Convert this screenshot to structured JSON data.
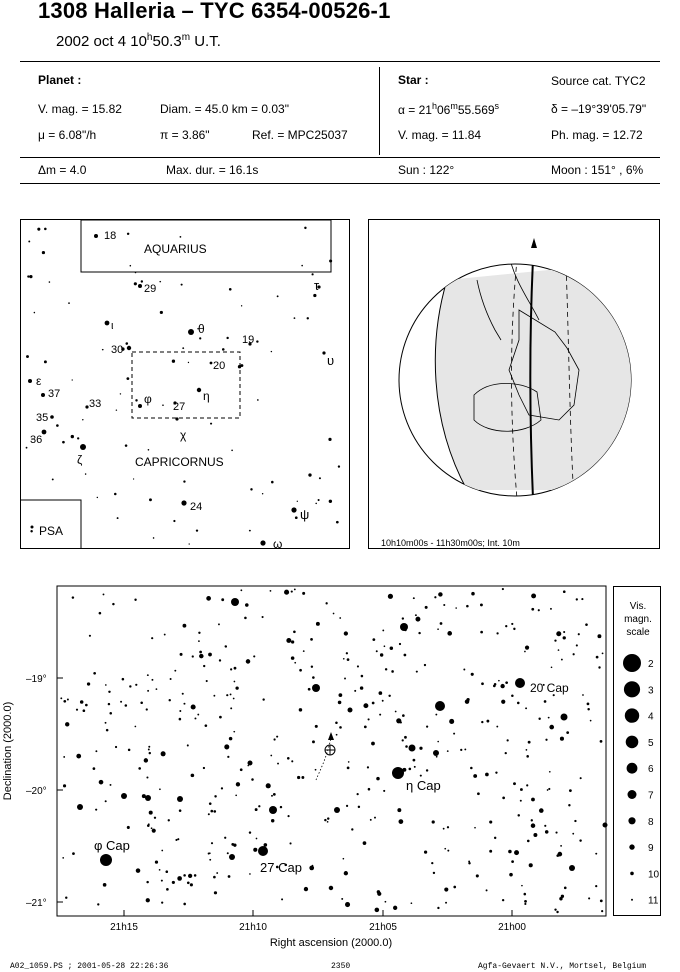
{
  "header": {
    "title": "1308 Halleria  –  TYC 6354-00526-1",
    "date": "2002 oct  4  10",
    "date_h": "h",
    "date_min": "50.3",
    "date_m": "m",
    "date_ut": " U.T."
  },
  "planet": {
    "label": "Planet :",
    "vmag": "V. mag. = 15.82",
    "diam": "Diam. = 45.0 km = 0.03\"",
    "mu": "μ =  6.08\"/h",
    "pi": "π =  3.86\"",
    "ref": "Ref. = MPC25037",
    "dm": "Δm = 4.0",
    "maxdur": "Max. dur. = 16.1s"
  },
  "star": {
    "label": "Star :",
    "source": "Source cat.  TYC2",
    "alpha_a": "α = 21",
    "alpha_h": "h",
    "alpha_b": "06",
    "alpha_m": "m",
    "alpha_c": "55.569",
    "alpha_s": "s",
    "delta": "δ = –19°39'05.79\"",
    "vmag": "V. mag. = 11.84",
    "phmag": "Ph. mag. = 12.72",
    "sun": "Sun : 122°",
    "moon": "Moon : 151° ,  6%"
  },
  "constellation_map": {
    "labels": {
      "aquarius": "AQUARIUS",
      "capricornus": "CAPRICORNUS",
      "psa": "PSA",
      "s18": "18",
      "s29": "29",
      "tau": "τ",
      "iota": "ι",
      "theta": "θ",
      "s19": "19",
      "s30": "30",
      "s20": "20",
      "upsilon": "υ",
      "epsilon": "ε",
      "s37": "37",
      "s33": "33",
      "phi": "φ",
      "s27": "27",
      "eta": "η",
      "s35": "35",
      "s36": "36",
      "chi": "χ",
      "zeta": "ζ",
      "s24": "24",
      "psi": "ψ",
      "omega": "ω"
    }
  },
  "globe": {
    "caption": "10h10m00s - 11h30m00s; Int. 10m"
  },
  "finder": {
    "dec_ticks": [
      "–19°",
      "–20°",
      "–21°"
    ],
    "ra_ticks": [
      "21h15",
      "21h10",
      "21h05",
      "21h00"
    ],
    "xlabel": "Right ascension (2000.0)",
    "ylabel": "Declination (2000.0)",
    "labels": {
      "cap20": "20 Cap",
      "eta": "η  Cap",
      "phi": "φ Cap",
      "cap27": "27 Cap"
    }
  },
  "scale": {
    "title1": "Vis.",
    "title2": "magn.",
    "title3": "scale",
    "mags": [
      "2",
      "3",
      "4",
      "5",
      "6",
      "7",
      "8",
      "9",
      "10",
      "11"
    ]
  },
  "footer": {
    "left": "A02_1059.PS ; 2001-05-28 22:26:36",
    "center": "2350",
    "right": "Agfa-Gevaert N.V., Mortsel, Belgium"
  }
}
